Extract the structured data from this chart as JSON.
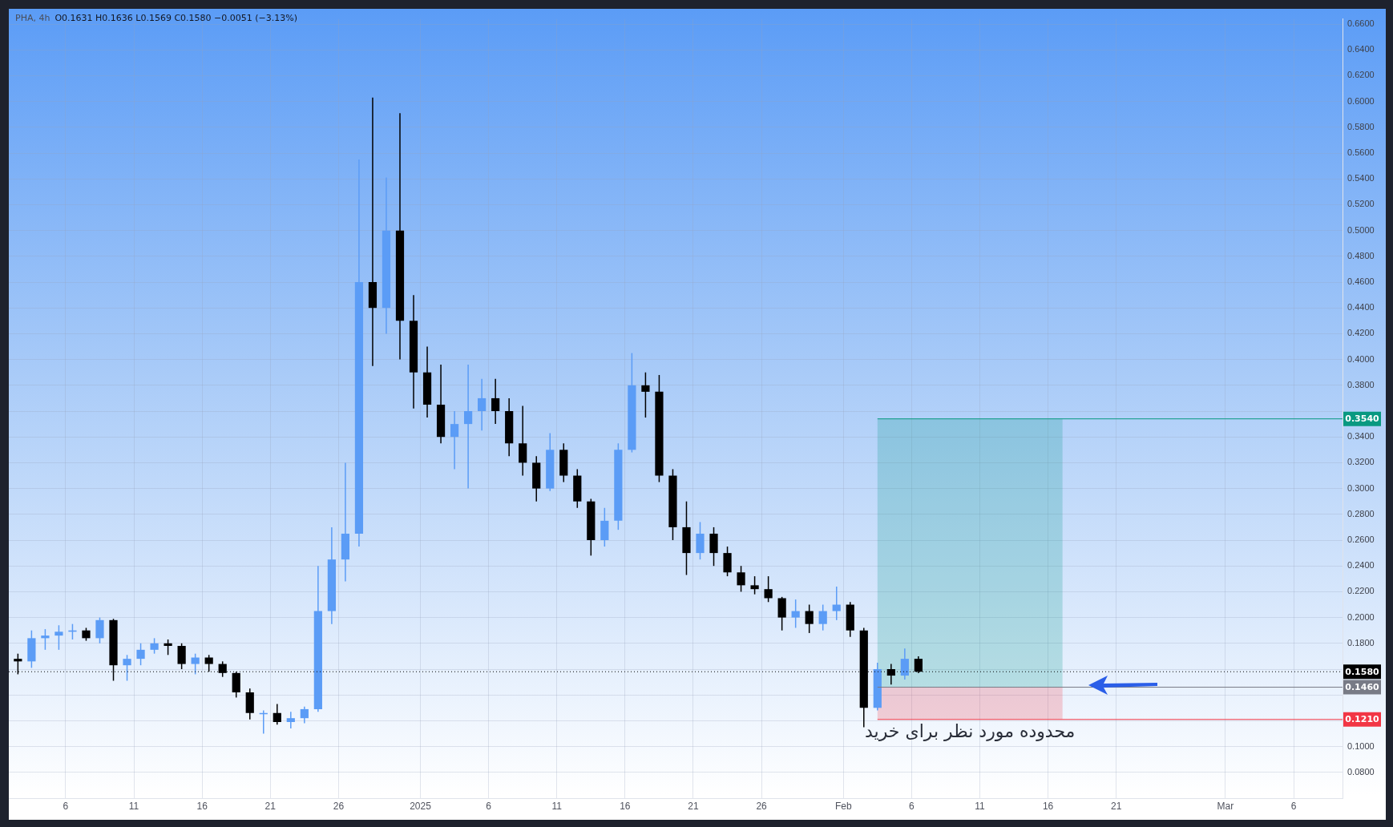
{
  "chart_data": {
    "type": "candlestick",
    "title": "PHA, 4h",
    "subtitle": "O0.1631 H0.1636 L0.1569 C0.1580 −0.0051 (−3.13%)",
    "x": [
      "2024-12-02T12:00",
      "2024-12-03T12:00",
      "2024-12-04T12:00",
      "2024-12-05T12:00",
      "2024-12-06T12:00",
      "2024-12-07T12:00",
      "2024-12-08T12:00",
      "2024-12-09T12:00",
      "2024-12-10T12:00",
      "2024-12-11T12:00",
      "2024-12-12T12:00",
      "2024-12-13T12:00",
      "2024-12-14T12:00",
      "2024-12-15T12:00",
      "2024-12-16T12:00",
      "2024-12-17T12:00",
      "2024-12-18T12:00",
      "2024-12-19T12:00",
      "2024-12-20T12:00",
      "2024-12-21T12:00",
      "2024-12-22T12:00",
      "2024-12-23T12:00",
      "2024-12-24T12:00",
      "2024-12-25T12:00",
      "2024-12-26T12:00",
      "2024-12-27T12:00",
      "2024-12-28T12:00",
      "2024-12-29T12:00",
      "2024-12-30T12:00",
      "2024-12-31T12:00",
      "2025-01-01T12:00",
      "2025-01-02T12:00",
      "2025-01-03T12:00",
      "2025-01-04T12:00",
      "2025-01-05T12:00",
      "2025-01-06T12:00",
      "2025-01-07T12:00",
      "2025-01-08T12:00",
      "2025-01-09T12:00",
      "2025-01-10T12:00",
      "2025-01-11T12:00",
      "2025-01-12T12:00",
      "2025-01-13T12:00",
      "2025-01-14T12:00",
      "2025-01-15T12:00",
      "2025-01-16T12:00",
      "2025-01-17T12:00",
      "2025-01-18T12:00",
      "2025-01-19T12:00",
      "2025-01-20T12:00",
      "2025-01-21T12:00",
      "2025-01-22T12:00",
      "2025-01-23T12:00",
      "2025-01-24T12:00",
      "2025-01-25T12:00",
      "2025-01-26T12:00",
      "2025-01-27T12:00",
      "2025-01-28T12:00",
      "2025-01-29T12:00",
      "2025-01-30T12:00",
      "2025-01-31T12:00",
      "2025-02-01T12:00",
      "2025-02-02T12:00",
      "2025-02-03T12:00",
      "2025-02-04T12:00",
      "2025-02-05T12:00",
      "2025-02-06T12:00"
    ],
    "ohlc": [
      [
        0.168,
        0.172,
        0.156,
        0.166
      ],
      [
        0.166,
        0.19,
        0.161,
        0.184
      ],
      [
        0.184,
        0.191,
        0.175,
        0.186
      ],
      [
        0.186,
        0.194,
        0.175,
        0.189
      ],
      [
        0.189,
        0.195,
        0.183,
        0.19
      ],
      [
        0.19,
        0.192,
        0.182,
        0.184
      ],
      [
        0.184,
        0.2,
        0.18,
        0.198
      ],
      [
        0.198,
        0.199,
        0.151,
        0.163
      ],
      [
        0.163,
        0.171,
        0.151,
        0.168
      ],
      [
        0.168,
        0.18,
        0.163,
        0.175
      ],
      [
        0.175,
        0.184,
        0.172,
        0.18
      ],
      [
        0.18,
        0.183,
        0.171,
        0.178
      ],
      [
        0.178,
        0.18,
        0.16,
        0.164
      ],
      [
        0.164,
        0.172,
        0.156,
        0.169
      ],
      [
        0.169,
        0.171,
        0.158,
        0.164
      ],
      [
        0.164,
        0.166,
        0.154,
        0.157
      ],
      [
        0.157,
        0.158,
        0.138,
        0.142
      ],
      [
        0.142,
        0.145,
        0.121,
        0.126
      ],
      [
        0.126,
        0.128,
        0.11,
        0.126
      ],
      [
        0.126,
        0.133,
        0.117,
        0.119
      ],
      [
        0.119,
        0.127,
        0.114,
        0.122
      ],
      [
        0.122,
        0.131,
        0.118,
        0.129
      ],
      [
        0.129,
        0.24,
        0.127,
        0.205
      ],
      [
        0.205,
        0.27,
        0.195,
        0.245
      ],
      [
        0.245,
        0.32,
        0.228,
        0.265
      ],
      [
        0.265,
        0.555,
        0.255,
        0.46
      ],
      [
        0.46,
        0.603,
        0.395,
        0.44
      ],
      [
        0.44,
        0.541,
        0.42,
        0.5
      ],
      [
        0.5,
        0.591,
        0.4,
        0.43
      ],
      [
        0.43,
        0.45,
        0.362,
        0.39
      ],
      [
        0.39,
        0.41,
        0.355,
        0.365
      ],
      [
        0.365,
        0.396,
        0.335,
        0.34
      ],
      [
        0.34,
        0.36,
        0.315,
        0.35
      ],
      [
        0.35,
        0.396,
        0.3,
        0.36
      ],
      [
        0.36,
        0.385,
        0.345,
        0.37
      ],
      [
        0.37,
        0.385,
        0.35,
        0.36
      ],
      [
        0.36,
        0.37,
        0.325,
        0.335
      ],
      [
        0.335,
        0.364,
        0.31,
        0.32
      ],
      [
        0.32,
        0.325,
        0.29,
        0.3
      ],
      [
        0.3,
        0.343,
        0.298,
        0.33
      ],
      [
        0.33,
        0.335,
        0.305,
        0.31
      ],
      [
        0.31,
        0.315,
        0.285,
        0.29
      ],
      [
        0.29,
        0.292,
        0.248,
        0.26
      ],
      [
        0.26,
        0.285,
        0.255,
        0.275
      ],
      [
        0.275,
        0.335,
        0.268,
        0.33
      ],
      [
        0.33,
        0.405,
        0.328,
        0.38
      ],
      [
        0.38,
        0.39,
        0.355,
        0.375
      ],
      [
        0.375,
        0.388,
        0.305,
        0.31
      ],
      [
        0.31,
        0.315,
        0.26,
        0.27
      ],
      [
        0.27,
        0.29,
        0.233,
        0.25
      ],
      [
        0.25,
        0.274,
        0.245,
        0.265
      ],
      [
        0.265,
        0.27,
        0.24,
        0.25
      ],
      [
        0.25,
        0.255,
        0.232,
        0.235
      ],
      [
        0.235,
        0.24,
        0.22,
        0.225
      ],
      [
        0.225,
        0.232,
        0.218,
        0.222
      ],
      [
        0.222,
        0.232,
        0.212,
        0.215
      ],
      [
        0.215,
        0.216,
        0.19,
        0.2
      ],
      [
        0.2,
        0.214,
        0.192,
        0.205
      ],
      [
        0.205,
        0.21,
        0.188,
        0.195
      ],
      [
        0.195,
        0.21,
        0.19,
        0.205
      ],
      [
        0.205,
        0.224,
        0.198,
        0.21
      ],
      [
        0.21,
        0.212,
        0.185,
        0.19
      ],
      [
        0.19,
        0.192,
        0.115,
        0.13
      ],
      [
        0.13,
        0.165,
        0.128,
        0.16
      ],
      [
        0.16,
        0.164,
        0.148,
        0.155
      ],
      [
        0.155,
        0.176,
        0.152,
        0.168
      ],
      [
        0.168,
        0.17,
        0.1569,
        0.158
      ]
    ],
    "colors": [
      "#000000",
      "#5b9cf6",
      "#5b9cf6",
      "#5b9cf6",
      "#5b9cf6",
      "#000000",
      "#5b9cf6",
      "#000000",
      "#5b9cf6",
      "#5b9cf6",
      "#5b9cf6",
      "#000000",
      "#000000",
      "#5b9cf6",
      "#000000",
      "#000000",
      "#000000",
      "#000000",
      "#5b9cf6",
      "#000000",
      "#5b9cf6",
      "#5b9cf6",
      "#5b9cf6",
      "#5b9cf6",
      "#5b9cf6",
      "#5b9cf6",
      "#000000",
      "#5b9cf6",
      "#000000",
      "#000000",
      "#000000",
      "#000000",
      "#5b9cf6",
      "#5b9cf6",
      "#5b9cf6",
      "#000000",
      "#000000",
      "#000000",
      "#000000",
      "#5b9cf6",
      "#000000",
      "#000000",
      "#000000",
      "#5b9cf6",
      "#5b9cf6",
      "#5b9cf6",
      "#000000",
      "#000000",
      "#000000",
      "#000000",
      "#5b9cf6",
      "#000000",
      "#000000",
      "#000000",
      "#000000",
      "#000000",
      "#000000",
      "#5b9cf6",
      "#000000",
      "#5b9cf6",
      "#5b9cf6",
      "#000000",
      "#000000",
      "#5b9cf6",
      "#000000",
      "#5b9cf6",
      "#000000"
    ],
    "xlim": [
      "2024-12-01T20:00",
      "2025-03-09T14:00"
    ],
    "xticks": [
      {
        "value": "2024-12-06",
        "label": "6"
      },
      {
        "value": "2024-12-11",
        "label": "11"
      },
      {
        "value": "2024-12-16",
        "label": "16"
      },
      {
        "value": "2024-12-21",
        "label": "21"
      },
      {
        "value": "2024-12-26",
        "label": "26"
      },
      {
        "value": "2025-01-01",
        "label": "2025"
      },
      {
        "value": "2025-01-06",
        "label": "6"
      },
      {
        "value": "2025-01-11",
        "label": "11"
      },
      {
        "value": "2025-01-16",
        "label": "16"
      },
      {
        "value": "2025-01-21",
        "label": "21"
      },
      {
        "value": "2025-01-26",
        "label": "26"
      },
      {
        "value": "2025-02-01",
        "label": "Feb"
      },
      {
        "value": "2025-02-06",
        "label": "6"
      },
      {
        "value": "2025-02-11",
        "label": "11"
      },
      {
        "value": "2025-02-16",
        "label": "16"
      },
      {
        "value": "2025-02-21",
        "label": "21"
      },
      {
        "value": "2025-03-01",
        "label": "Mar"
      },
      {
        "value": "2025-03-06",
        "label": "6"
      }
    ],
    "ylim": [
      0.06,
      0.664
    ],
    "yticks": [
      {
        "value": 0.08,
        "label": "0.0800"
      },
      {
        "value": 0.1,
        "label": "0.1000"
      },
      {
        "value": 0.12,
        "label": null
      },
      {
        "value": 0.14,
        "label": null
      },
      {
        "value": 0.16,
        "label": null
      },
      {
        "value": 0.18,
        "label": "0.1800"
      },
      {
        "value": 0.2,
        "label": "0.2000"
      },
      {
        "value": 0.22,
        "label": "0.2200"
      },
      {
        "value": 0.24,
        "label": "0.2400"
      },
      {
        "value": 0.26,
        "label": "0.2600"
      },
      {
        "value": 0.28,
        "label": "0.2800"
      },
      {
        "value": 0.3,
        "label": "0.3000"
      },
      {
        "value": 0.32,
        "label": "0.3200"
      },
      {
        "value": 0.34,
        "label": "0.3400"
      },
      {
        "value": 0.36,
        "label": null
      },
      {
        "value": 0.38,
        "label": "0.3800"
      },
      {
        "value": 0.4,
        "label": "0.4000"
      },
      {
        "value": 0.42,
        "label": "0.4200"
      },
      {
        "value": 0.44,
        "label": "0.4400"
      },
      {
        "value": 0.46,
        "label": "0.4600"
      },
      {
        "value": 0.48,
        "label": "0.4800"
      },
      {
        "value": 0.5,
        "label": "0.5000"
      },
      {
        "value": 0.52,
        "label": "0.5200"
      },
      {
        "value": 0.54,
        "label": "0.5400"
      },
      {
        "value": 0.56,
        "label": "0.5600"
      },
      {
        "value": 0.58,
        "label": "0.5800"
      },
      {
        "value": 0.6,
        "label": "0.6000"
      },
      {
        "value": 0.62,
        "label": "0.6200"
      },
      {
        "value": 0.64,
        "label": "0.6400"
      },
      {
        "value": 0.66,
        "label": "0.6600"
      }
    ],
    "grid": true,
    "bands": [
      {
        "axis": "y",
        "from": 0.146,
        "to": 0.354,
        "color": "#009688"
      },
      {
        "axis": "y",
        "from": 0.121,
        "to": 0.146,
        "color": "#f23645"
      }
    ],
    "ref_lines": [
      {
        "axis": "y",
        "value": 0.158,
        "label": "0.1580",
        "color": "#000000",
        "line_style": "dotted"
      },
      {
        "axis": "y",
        "value": 0.354,
        "label": "0.3540",
        "color": "#089981",
        "line_style": "solid"
      },
      {
        "axis": "y",
        "value": 0.146,
        "label": "0.1460",
        "color": "#787b86",
        "line_style": "solid"
      },
      {
        "axis": "y",
        "value": 0.121,
        "label": "0.1210",
        "color": "#f23645",
        "line_style": "solid"
      }
    ],
    "annotations": [
      "محدوده مورد نظر برای خرید"
    ]
  }
}
